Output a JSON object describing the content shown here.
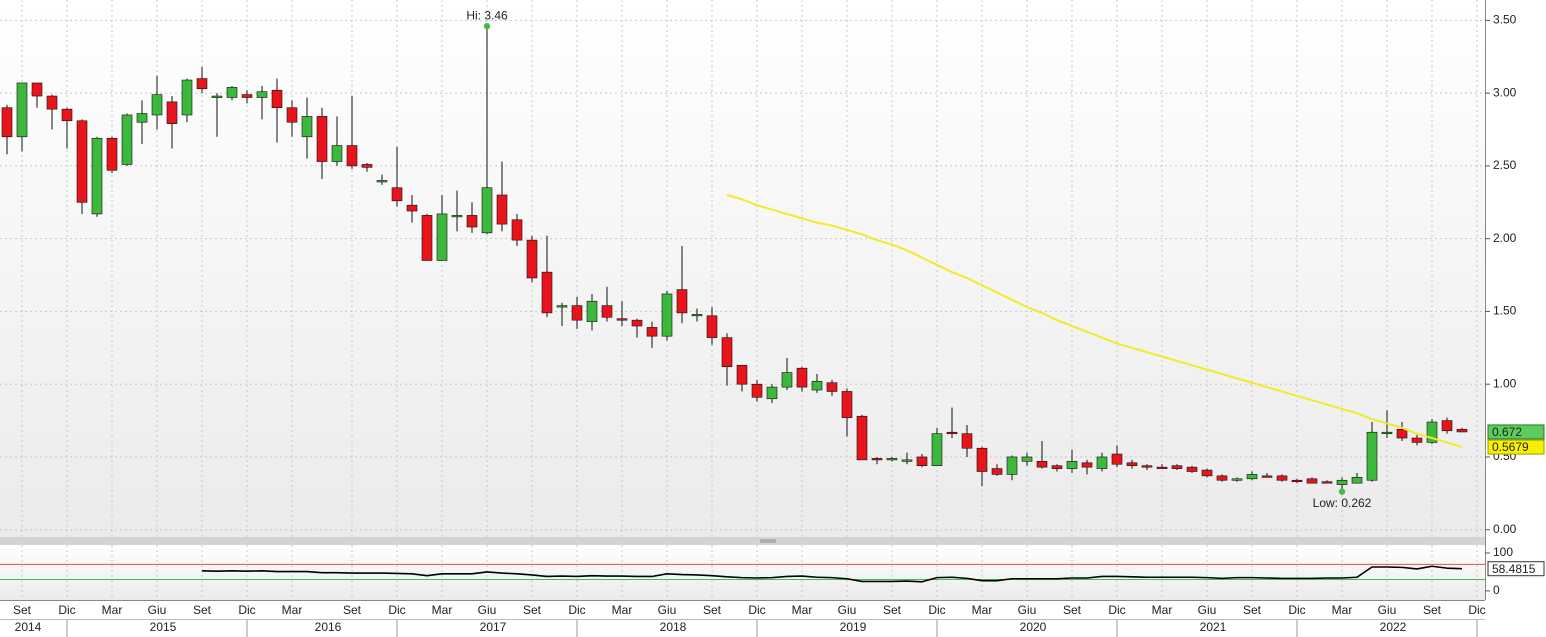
{
  "chart_data": [
    {
      "type": "candlestick",
      "categories": [
        null,
        "Set",
        null,
        null,
        "Dic",
        null,
        null,
        "Mar",
        null,
        null,
        "Giu",
        null,
        null,
        "Set",
        null,
        null,
        "Dic",
        null,
        null,
        "Mar",
        null,
        null,
        null,
        "Set",
        null,
        null,
        "Dic",
        null,
        null,
        "Mar",
        null,
        null,
        "Giu",
        null,
        null,
        "Set",
        null,
        null,
        "Dic",
        null,
        null,
        "Mar",
        null,
        null,
        "Giu",
        null,
        null,
        "Set",
        null,
        null,
        "Dic",
        null,
        null,
        "Mar",
        null,
        null,
        "Giu",
        null,
        null,
        "Set",
        null,
        null,
        "Dic",
        null,
        null,
        "Mar",
        null,
        null,
        "Giu",
        null,
        null,
        "Set",
        null,
        null,
        "Dic",
        null,
        null,
        "Mar",
        null,
        null,
        "Giu",
        null,
        null,
        "Set",
        null,
        null,
        "Dic",
        null,
        null,
        "Mar",
        null,
        null,
        "Giu",
        null,
        null,
        "Set",
        null,
        null,
        "Dic"
      ],
      "years": [
        null,
        "2014",
        null,
        null,
        null,
        null,
        null,
        null,
        null,
        null,
        "2015",
        null,
        null,
        null,
        null,
        null,
        null,
        null,
        null,
        null,
        null,
        "2016",
        null,
        null,
        null,
        null,
        null,
        null,
        null,
        null,
        null,
        null,
        "2017",
        null,
        null,
        null,
        null,
        null,
        null,
        null,
        null,
        null,
        null,
        null,
        "2018",
        null,
        null,
        null,
        null,
        null,
        null,
        null,
        null,
        null,
        null,
        null,
        "2019",
        null,
        null,
        null,
        null,
        null,
        null,
        null,
        null,
        null,
        null,
        null,
        "2020",
        null,
        null,
        null,
        null,
        null,
        null,
        null,
        null,
        null,
        null,
        null,
        "2021",
        null,
        null,
        null,
        null,
        null,
        null,
        null,
        null,
        null,
        null,
        null,
        "2022",
        null,
        null,
        null,
        null,
        null,
        null
      ],
      "open": [
        2.9,
        2.7,
        3.07,
        2.98,
        2.89,
        2.81,
        2.17,
        2.69,
        2.51,
        2.8,
        2.85,
        2.94,
        2.85,
        3.1,
        2.97,
        2.97,
        2.99,
        2.97,
        3.02,
        2.9,
        2.7,
        2.84,
        2.53,
        2.64,
        2.51,
        2.39,
        2.35,
        2.23,
        2.16,
        1.85,
        2.15,
        2.16,
        2.04,
        2.3,
        2.13,
        1.99,
        1.77,
        1.53,
        1.54,
        1.43,
        1.54,
        1.45,
        1.44,
        1.39,
        1.33,
        1.65,
        1.47,
        1.47,
        1.32,
        1.13,
        1.0,
        0.9,
        0.98,
        1.11,
        0.96,
        1.01,
        0.95,
        0.78,
        0.49,
        0.48,
        0.48,
        0.5,
        0.44,
        0.67,
        0.66,
        0.56,
        0.42,
        0.38,
        0.47,
        0.47,
        0.44,
        0.42,
        0.46,
        0.42,
        0.52,
        0.46,
        0.44,
        0.43,
        0.44,
        0.43,
        0.41,
        0.37,
        0.34,
        0.35,
        0.37,
        0.37,
        0.34,
        0.35,
        0.33,
        0.31,
        0.32,
        0.34,
        0.66,
        0.69,
        0.63,
        0.6,
        0.75,
        0.69,
        null
      ],
      "high": [
        2.92,
        3.07,
        3.07,
        2.99,
        2.9,
        2.82,
        2.7,
        2.7,
        2.86,
        2.95,
        3.12,
        2.98,
        3.1,
        3.18,
        3.0,
        3.05,
        3.02,
        3.05,
        3.1,
        2.95,
        2.97,
        2.9,
        2.84,
        2.98,
        2.52,
        2.44,
        2.63,
        2.3,
        2.17,
        2.3,
        2.33,
        2.25,
        3.46,
        2.53,
        2.17,
        2.02,
        2.02,
        1.56,
        1.6,
        1.62,
        1.67,
        1.57,
        1.45,
        1.43,
        1.64,
        1.95,
        1.52,
        1.53,
        1.35,
        1.13,
        1.03,
        1.0,
        1.18,
        1.12,
        1.07,
        1.03,
        0.97,
        0.79,
        0.5,
        0.5,
        0.53,
        0.52,
        0.7,
        0.84,
        0.72,
        0.57,
        0.45,
        0.51,
        0.53,
        0.61,
        0.45,
        0.55,
        0.48,
        0.53,
        0.58,
        0.48,
        0.45,
        0.45,
        0.45,
        0.44,
        0.42,
        0.38,
        0.36,
        0.4,
        0.39,
        0.38,
        0.35,
        0.36,
        0.34,
        0.36,
        0.39,
        0.74,
        0.82,
        0.74,
        0.65,
        0.76,
        0.77,
        0.7,
        null
      ],
      "low": [
        2.58,
        2.6,
        2.9,
        2.75,
        2.62,
        2.17,
        2.15,
        2.45,
        2.5,
        2.65,
        2.75,
        2.62,
        2.8,
        3.0,
        2.7,
        2.95,
        2.93,
        2.82,
        2.66,
        2.7,
        2.55,
        2.41,
        2.5,
        2.48,
        2.46,
        2.37,
        2.22,
        2.11,
        1.85,
        1.85,
        2.05,
        2.04,
        2.03,
        2.05,
        1.95,
        1.7,
        1.46,
        1.4,
        1.38,
        1.37,
        1.43,
        1.4,
        1.32,
        1.25,
        1.3,
        1.42,
        1.43,
        1.27,
        0.99,
        0.95,
        0.88,
        0.87,
        0.96,
        0.95,
        0.94,
        0.92,
        0.64,
        0.48,
        0.45,
        0.47,
        0.45,
        0.43,
        0.44,
        0.63,
        0.5,
        0.3,
        0.37,
        0.34,
        0.44,
        0.42,
        0.4,
        0.39,
        0.38,
        0.4,
        0.43,
        0.42,
        0.41,
        0.42,
        0.41,
        0.39,
        0.36,
        0.33,
        0.33,
        0.34,
        0.36,
        0.33,
        0.32,
        0.32,
        0.32,
        0.262,
        0.32,
        0.33,
        0.63,
        0.61,
        0.58,
        0.59,
        0.66,
        0.67,
        null
      ],
      "close": [
        2.7,
        3.07,
        2.98,
        2.89,
        2.81,
        2.25,
        2.69,
        2.47,
        2.85,
        2.86,
        2.99,
        2.79,
        3.09,
        3.03,
        2.98,
        3.04,
        2.97,
        3.01,
        2.9,
        2.8,
        2.84,
        2.53,
        2.64,
        2.5,
        2.49,
        2.4,
        2.26,
        2.19,
        1.85,
        2.17,
        2.16,
        2.08,
        2.35,
        2.1,
        1.99,
        1.73,
        1.49,
        1.54,
        1.44,
        1.57,
        1.46,
        1.44,
        1.4,
        1.33,
        1.62,
        1.49,
        1.48,
        1.32,
        1.12,
        1.0,
        0.91,
        0.98,
        1.08,
        0.98,
        1.02,
        0.95,
        0.77,
        0.48,
        0.48,
        0.49,
        0.48,
        0.44,
        0.66,
        0.66,
        0.56,
        0.4,
        0.38,
        0.5,
        0.5,
        0.43,
        0.42,
        0.47,
        0.43,
        0.5,
        0.45,
        0.44,
        0.43,
        0.425,
        0.42,
        0.4,
        0.37,
        0.34,
        0.35,
        0.38,
        0.365,
        0.34,
        0.33,
        0.32,
        0.328,
        0.34,
        0.36,
        0.67,
        0.67,
        0.63,
        0.6,
        0.74,
        0.68,
        0.672,
        null
      ],
      "up_color": "#3cb83c",
      "down_color": "#e8141c",
      "moving_average": {
        "color": "#f2ea2a",
        "values": [
          null,
          null,
          null,
          null,
          null,
          null,
          null,
          null,
          null,
          null,
          null,
          null,
          null,
          null,
          null,
          null,
          null,
          null,
          null,
          null,
          null,
          null,
          null,
          null,
          null,
          null,
          null,
          null,
          null,
          null,
          null,
          null,
          null,
          null,
          null,
          null,
          null,
          null,
          null,
          null,
          null,
          null,
          null,
          null,
          null,
          null,
          null,
          null,
          2.3,
          2.27,
          2.23,
          2.2,
          2.17,
          2.14,
          2.11,
          2.09,
          2.06,
          2.03,
          1.99,
          1.96,
          1.92,
          1.87,
          1.82,
          1.77,
          1.73,
          1.68,
          1.63,
          1.58,
          1.53,
          1.49,
          1.44,
          1.4,
          1.36,
          1.32,
          1.28,
          1.25,
          1.22,
          1.19,
          1.16,
          1.13,
          1.1,
          1.07,
          1.04,
          1.01,
          0.98,
          0.95,
          0.92,
          0.89,
          0.86,
          0.83,
          0.8,
          0.76,
          0.73,
          0.7,
          0.66,
          0.63,
          0.6,
          0.5679,
          null
        ]
      },
      "annotations": [
        {
          "label": "Hi: 3.46",
          "index": 32,
          "value": 3.46
        },
        {
          "label": "Low: 0.262",
          "index": 89,
          "value": 0.262
        }
      ],
      "annotation_color": "#4cb84c",
      "ylim": [
        -0.05,
        3.64
      ],
      "yticks": [
        {
          "value": 0,
          "label": "0.00"
        },
        {
          "value": 0.5,
          "label": "0.50"
        },
        {
          "value": 1,
          "label": "1.00"
        },
        {
          "value": 1.5,
          "label": "1.50"
        },
        {
          "value": 2,
          "label": "2.00"
        },
        {
          "value": 2.5,
          "label": "2.50"
        },
        {
          "value": 3,
          "label": "3.00"
        },
        {
          "value": 3.5,
          "label": "3.50"
        }
      ],
      "grid": true
    },
    {
      "type": "line",
      "color": "#000000",
      "values": [
        null,
        null,
        null,
        null,
        null,
        null,
        null,
        null,
        null,
        null,
        null,
        null,
        null,
        53,
        52,
        53,
        52,
        53,
        51,
        51,
        51,
        48,
        48,
        47,
        47,
        47,
        46,
        45,
        40,
        45,
        45,
        45,
        50,
        47,
        45,
        42,
        38,
        39,
        38,
        40,
        39,
        39,
        38,
        38,
        45,
        43,
        42,
        40,
        37,
        35,
        34,
        35,
        38,
        39,
        36,
        35,
        32,
        25,
        25,
        25,
        26,
        24,
        35,
        36,
        33,
        27,
        27,
        32,
        32,
        32,
        32,
        34,
        34,
        38,
        38,
        37,
        36,
        36,
        36,
        36,
        35,
        33,
        35,
        35,
        34,
        33,
        33,
        33,
        34,
        34,
        36,
        63,
        63,
        62,
        58,
        65,
        60,
        58.4815,
        null
      ],
      "reference_lines": [
        {
          "value": 70,
          "color": "#e05050"
        },
        {
          "value": 30,
          "color": "#40c040"
        }
      ],
      "ylim": [
        -24,
        121
      ],
      "yticks": [
        0,
        100
      ]
    }
  ]
}
